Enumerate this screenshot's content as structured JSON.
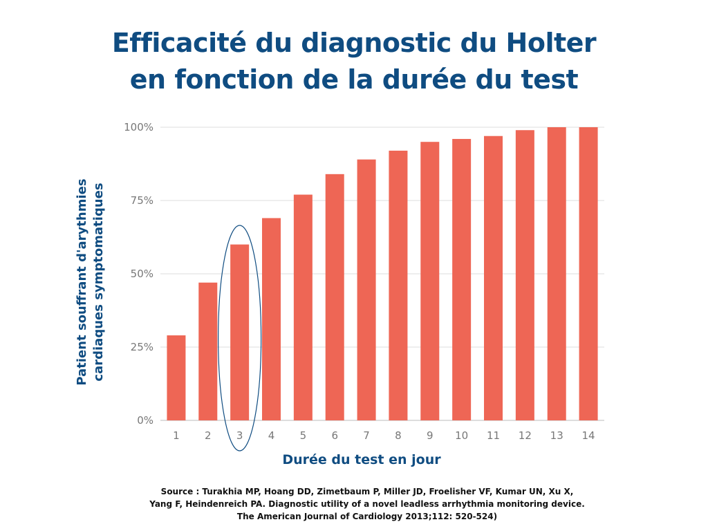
{
  "title": {
    "line1": "Efficacité du diagnostic du Holter",
    "line2": "en fonction de la durée du test"
  },
  "source": {
    "line1": "Source : Turakhia MP, Hoang DD, Zimetbaum P, Miller JD, Froelisher VF, Kumar UN, Xu X,",
    "line2": "Yang F, Heindenreich PA. Diagnostic utility of a novel leadless arrhythmia monitoring device.",
    "line3": "The American Journal of Cardiology 2013;112: 520-524)"
  },
  "colors": {
    "bar": "#ee6655",
    "title": "#0f4c81",
    "highlight": "#0f4c81",
    "grid": "#dddddd",
    "axis": "#bbbbbb"
  },
  "chart_data": {
    "type": "bar",
    "categories": [
      "1",
      "2",
      "3",
      "4",
      "5",
      "6",
      "7",
      "8",
      "9",
      "10",
      "11",
      "12",
      "13",
      "14"
    ],
    "values": [
      29,
      47,
      60,
      69,
      77,
      84,
      89,
      92,
      95,
      96,
      97,
      99,
      100,
      100
    ],
    "ylim": [
      0,
      100
    ],
    "yticks": [
      0,
      25,
      50,
      75,
      100
    ],
    "ytick_labels": [
      "0%",
      "25%",
      "50%",
      "75%",
      "100%"
    ],
    "xlabel": "Durée du test en jour",
    "ylabel_line1": "Patient souffrant d'arythmies",
    "ylabel_line2": "cardiaques symptomatiques",
    "highlighted_category": "3",
    "grid": true
  }
}
